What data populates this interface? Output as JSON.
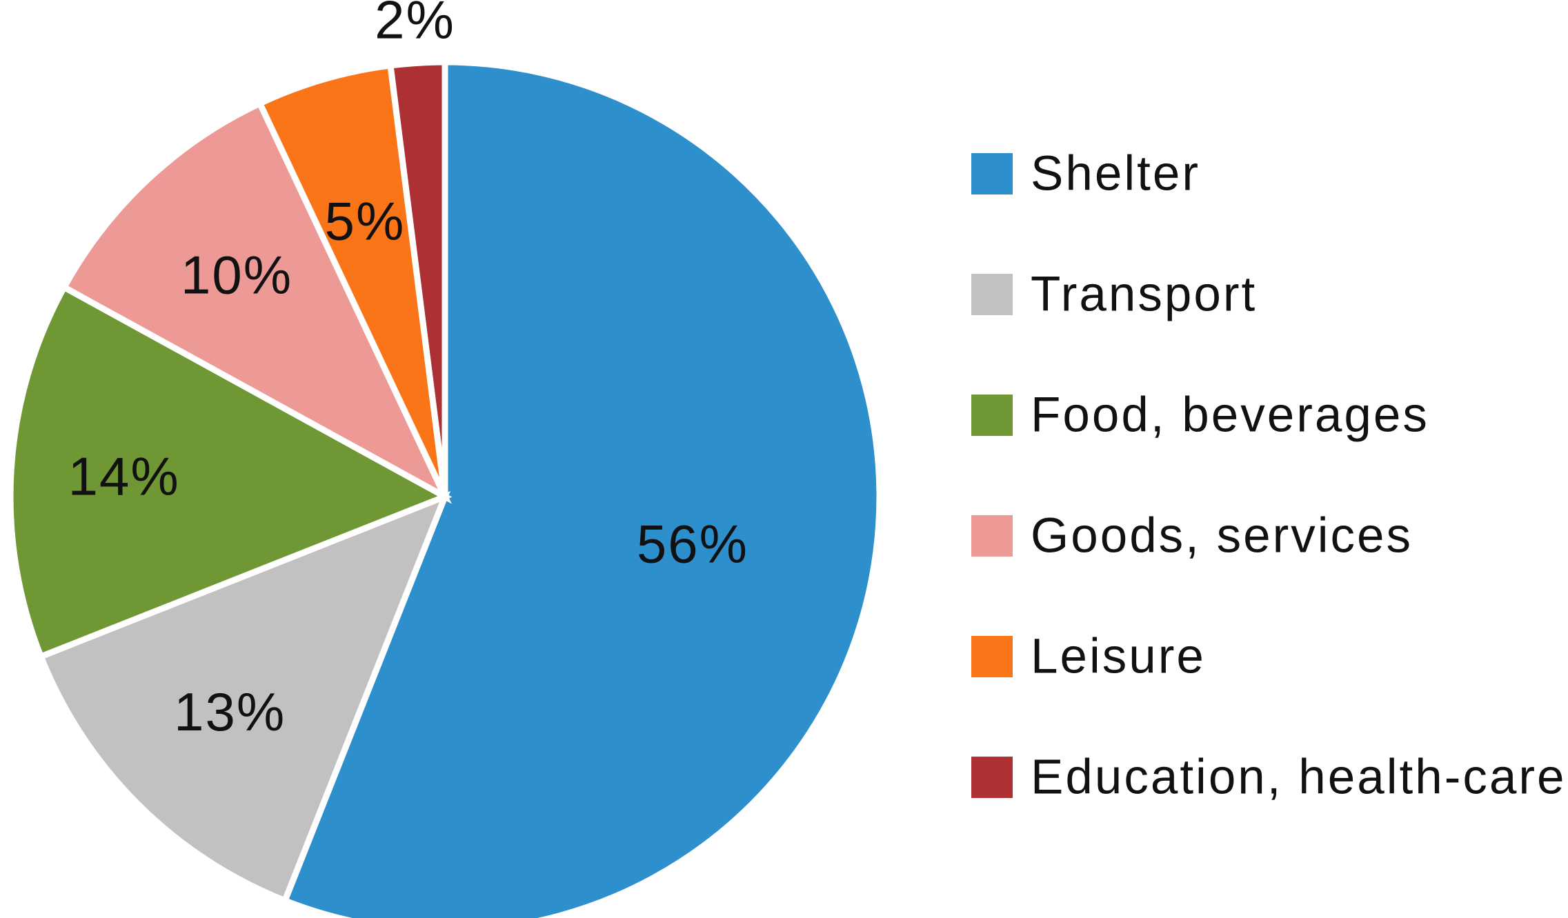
{
  "chart_data": {
    "type": "pie",
    "title": "",
    "start_angle_deg": 0,
    "direction": "clockwise",
    "legend_position": "right",
    "slices": [
      {
        "name": "Shelter",
        "value": 56,
        "label": "56%",
        "color": "#2E8FCD"
      },
      {
        "name": "Transport",
        "value": 13,
        "label": "13%",
        "color": "#C2C0C0"
      },
      {
        "name": "Food, beverages",
        "value": 14,
        "label": "14%",
        "color": "#6F9834"
      },
      {
        "name": "Goods, services",
        "value": 10,
        "label": "10%",
        "color": "#ED9A96"
      },
      {
        "name": "Leisure",
        "value": 5,
        "label": "5%",
        "color": "#FA7518"
      },
      {
        "name": "Education, health-care",
        "value": 2,
        "label": "2%",
        "color": "#AD3034"
      }
    ]
  }
}
